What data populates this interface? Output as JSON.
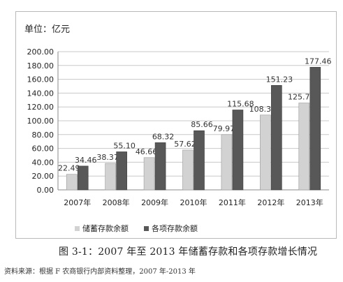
{
  "caption": "图 3-1：2007 年至 2013 年储蓄存款和各项存款增长情况",
  "source": "资料来源：根据 F 农商银行内部资料整理，2007 年-2013 年",
  "chart_data": {
    "type": "bar",
    "unit_label": "单位：亿元",
    "categories": [
      "2007年",
      "2008年",
      "2009年",
      "2010年",
      "2011年",
      "2012年",
      "2013年"
    ],
    "series": [
      {
        "name": "储蓄存款余额",
        "color": "#d2d2d2",
        "values": [
          22.49,
          38.37,
          46.66,
          57.62,
          79.97,
          108.3,
          125.74
        ],
        "labels": [
          "22.49",
          "38.37",
          "46.66",
          "57.62",
          "79.97",
          "108.30",
          "125.74"
        ]
      },
      {
        "name": "各项存款余额",
        "color": "#585858",
        "values": [
          34.46,
          55.1,
          68.32,
          85.66,
          115.68,
          151.23,
          177.46
        ],
        "labels": [
          "34.46",
          "55.10",
          "68.32",
          "85.66",
          "115.68",
          "151.23",
          "177.46"
        ]
      }
    ],
    "yticks": [
      "0.00",
      "20.00",
      "40.00",
      "60.00",
      "80.00",
      "100.00",
      "120.00",
      "140.00",
      "160.00",
      "180.00",
      "200.00"
    ],
    "ylim": [
      0,
      200
    ],
    "grid": true,
    "legend_position": "bottom"
  }
}
